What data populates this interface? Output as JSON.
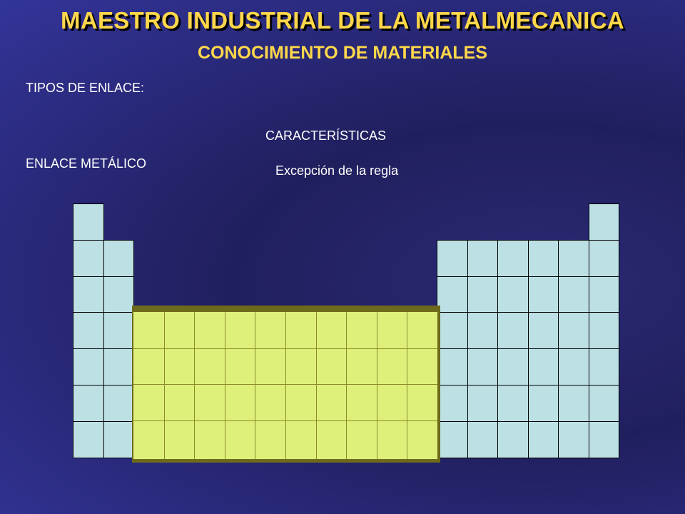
{
  "slide": {
    "title": "MAESTRO INDUSTRIAL DE LA METALMECANICA",
    "subtitle": "CONOCIMIENTO DE MATERIALES",
    "tipos_label": "TIPOS DE ENLACE:",
    "caracteristicas_label": "CARACTERÍSTICAS",
    "enlace_label": "ENLACE METÁLICO",
    "excepcion_label": "Excepción de la regla"
  },
  "colors": {
    "title": "#ffd84a",
    "cell_fill": "#bde0e5",
    "metal_highlight": "#dff07a",
    "background": "#2b2a74"
  }
}
